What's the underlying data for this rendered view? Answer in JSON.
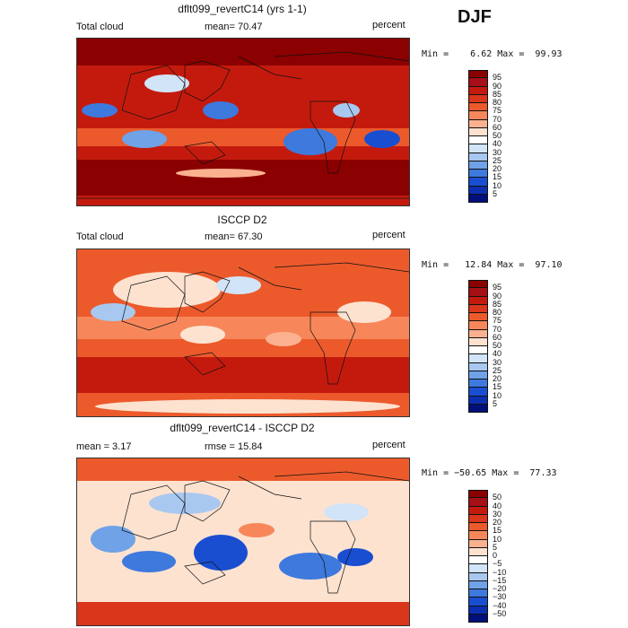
{
  "season": "DJF",
  "panels": [
    {
      "title": "dflt099_revertC14 (yrs 1-1)",
      "left_label": "Total cloud",
      "mean_text": "mean=   70.47",
      "units": "percent",
      "minmax": "Min =    6.62 Max =  99.93",
      "kind": "model"
    },
    {
      "title": "ISCCP D2",
      "left_label": "Total cloud",
      "mean_text": "mean=   67.30",
      "units": "percent",
      "minmax": "Min =   12.84 Max =  97.10",
      "kind": "obs"
    },
    {
      "title": "dflt099_revertC14 - ISCCP D2",
      "left_label": "mean =    3.17",
      "mean_text": "rmse =   15.84",
      "units": "percent",
      "minmax": "Min = −50.65 Max =  77.33",
      "kind": "diff"
    }
  ],
  "colorbars": [
    {
      "labels": [
        "95",
        "90",
        "85",
        "80",
        "75",
        "70",
        "60",
        "50",
        "40",
        "30",
        "25",
        "20",
        "15",
        "10",
        "5"
      ],
      "colors": [
        "#8b0000",
        "#a50f15",
        "#c41a0e",
        "#d9361c",
        "#ec5a2c",
        "#f7875a",
        "#fbb190",
        "#fde2d0",
        "#ffffff",
        "#d2e4f7",
        "#a8c8f0",
        "#6fa2e6",
        "#3e79dd",
        "#1a4ed1",
        "#0b2fb0",
        "#00107a"
      ]
    },
    {
      "labels": [
        "95",
        "90",
        "85",
        "80",
        "75",
        "70",
        "60",
        "50",
        "40",
        "30",
        "25",
        "20",
        "15",
        "10",
        "5"
      ],
      "colors": [
        "#8b0000",
        "#a50f15",
        "#c41a0e",
        "#d9361c",
        "#ec5a2c",
        "#f7875a",
        "#fbb190",
        "#fde2d0",
        "#ffffff",
        "#d2e4f7",
        "#a8c8f0",
        "#6fa2e6",
        "#3e79dd",
        "#1a4ed1",
        "#0b2fb0",
        "#00107a"
      ]
    },
    {
      "labels": [
        "50",
        "40",
        "30",
        "20",
        "15",
        "10",
        "5",
        "0",
        "−5",
        "−10",
        "−15",
        "−20",
        "−30",
        "−40",
        "−50"
      ],
      "colors": [
        "#8b0000",
        "#a50f15",
        "#c41a0e",
        "#d9361c",
        "#ec5a2c",
        "#f7875a",
        "#fbb190",
        "#fde2d0",
        "#ffffff",
        "#d2e4f7",
        "#a8c8f0",
        "#6fa2e6",
        "#3e79dd",
        "#1a4ed1",
        "#0b2fb0",
        "#00107a"
      ]
    }
  ]
}
